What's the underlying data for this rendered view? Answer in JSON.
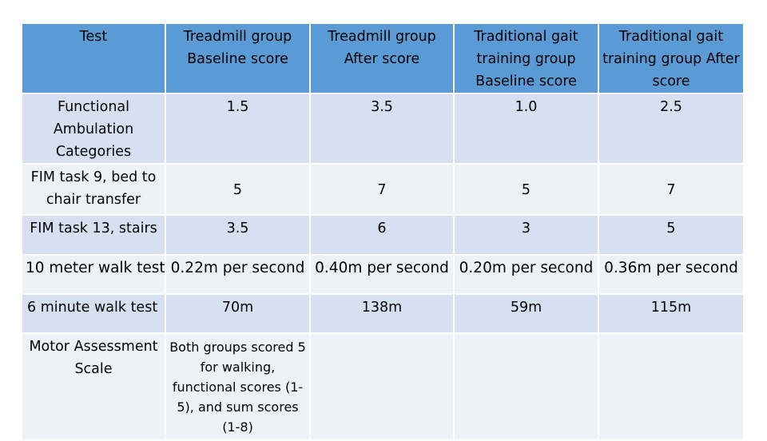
{
  "table": {
    "headers": [
      "Test",
      "Treadmill group Baseline score",
      "Treadmill group After score",
      "Traditional gait training group Baseline score",
      "Traditional gait training group After score"
    ],
    "rows": [
      [
        "Functional Ambulation Categories",
        "1.5",
        "3.5",
        "1.0",
        "2.5"
      ],
      [
        "FIM task 9, bed to chair transfer",
        "5",
        "7",
        "5",
        "7"
      ],
      [
        "FIM task 13, stairs",
        "3.5",
        "6",
        "3",
        "5"
      ],
      [
        "10 meter walk test",
        "0.22m per second",
        "0.40m per second",
        "0.20m per second",
        "0.36m per second"
      ],
      [
        "6 minute walk test",
        "70m",
        "138m",
        "59m",
        "115m"
      ],
      [
        "Motor Assessment Scale",
        "Both groups scored 5 for walking, functional scores (1-5), and sum scores (1-8)",
        "",
        "",
        ""
      ]
    ]
  },
  "colors": {
    "header_bg": "#5b9bd5",
    "row_dark": "#d6e0f0",
    "row_light": "#edf1f8"
  }
}
